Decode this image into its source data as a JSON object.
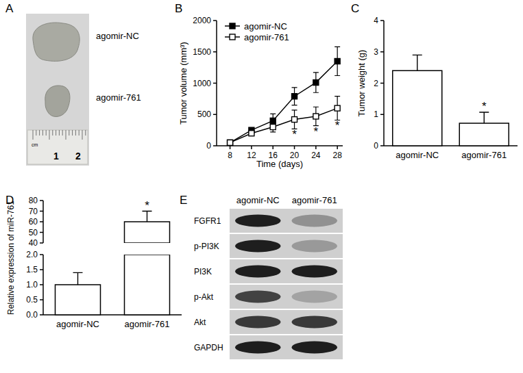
{
  "chart_data": [
    {
      "title": "B",
      "type": "line",
      "x": [
        8,
        12,
        16,
        20,
        24,
        28
      ],
      "xlim": [
        5.5,
        29
      ],
      "xticks": [
        8,
        12,
        16,
        20,
        24,
        28
      ],
      "ylim": [
        0,
        2000
      ],
      "yticks": [
        0,
        500,
        1000,
        1500,
        2000
      ],
      "x_label": "Time (days)",
      "y_label": "Tumor volume (mm³)",
      "legend": "top-left",
      "series": [
        {
          "name": "agomir-NC",
          "color": "#000000",
          "marker": "square-filled",
          "line_style": "solid",
          "values": [
            50,
            250,
            400,
            790,
            1010,
            1350
          ],
          "errors": [
            10,
            30,
            110,
            140,
            160,
            230
          ]
        },
        {
          "name": "agomir-761",
          "color": "#000000",
          "marker": "square-open",
          "line_style": "solid",
          "values": [
            50,
            200,
            300,
            420,
            470,
            600
          ],
          "errors": [
            10,
            20,
            80,
            150,
            150,
            190
          ]
        }
      ],
      "annotations": [
        {
          "x": 20,
          "text": "*"
        },
        {
          "x": 24,
          "text": "*"
        },
        {
          "x": 28,
          "text": "*"
        }
      ]
    },
    {
      "title": "C",
      "type": "bar",
      "categories": [
        "agomir-NC",
        "agomir-761"
      ],
      "values": [
        2.4,
        0.72
      ],
      "errors": [
        0.5,
        0.35
      ],
      "color": "#ffffff",
      "ylim": [
        0,
        4
      ],
      "yticks": [
        0,
        1,
        2,
        3,
        4
      ],
      "y_label": "Tumor weight (g)",
      "annotations": [
        {
          "index": 1,
          "text": "*"
        }
      ]
    },
    {
      "title": "D",
      "type": "bar",
      "categories": [
        "agomir-NC",
        "agomir-761"
      ],
      "values": [
        1.0,
        60
      ],
      "errors": [
        0.4,
        10
      ],
      "color": "#ffffff",
      "ylim": [
        0,
        80
      ],
      "y_break": [
        2,
        40
      ],
      "yticks": [
        {
          "value": 0,
          "label": "0.0"
        },
        0.5,
        {
          "value": 1,
          "label": "1.0"
        },
        1.5,
        {
          "value": 2,
          "label": "2.0"
        },
        40,
        50,
        60,
        70,
        80
      ],
      "y_label": "Relative expression of miR-761",
      "annotations": [
        {
          "index": 1,
          "text": "*"
        }
      ]
    }
  ],
  "photo": {
    "title": "A",
    "labels": [
      "agomir-NC",
      "agomir-761"
    ],
    "ruler_labels": [
      "1",
      "2"
    ],
    "ruler_unit": "cm"
  },
  "blot": {
    "title": "E",
    "lanes": [
      "agomir-NC",
      "agomir-761"
    ],
    "rows": [
      {
        "label": "FGFR1",
        "intensity": [
          1,
          0.35
        ]
      },
      {
        "label": "p-PI3K",
        "intensity": [
          1,
          0.3
        ]
      },
      {
        "label": "PI3K",
        "intensity": [
          1,
          1
        ]
      },
      {
        "label": "p-Akt",
        "intensity": [
          0.8,
          0.25
        ]
      },
      {
        "label": "Akt",
        "intensity": [
          0.85,
          0.85
        ]
      },
      {
        "label": "GAPDH",
        "intensity": [
          1,
          1
        ]
      }
    ]
  }
}
